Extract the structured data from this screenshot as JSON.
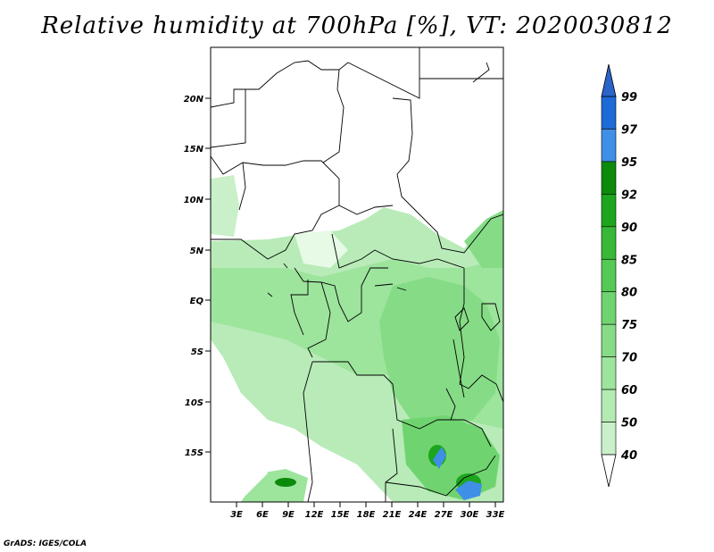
{
  "title": "Relative humidity at 700hPa [%], VT: 2020030812",
  "credit": "GrADS: IGES/COLA",
  "map": {
    "lon_range": [
      0,
      34
    ],
    "lat_range": [
      -20,
      25
    ],
    "lon_ticks": [
      "3E",
      "6E",
      "9E",
      "12E",
      "15E",
      "18E",
      "21E",
      "24E",
      "27E",
      "30E",
      "33E"
    ],
    "lat_ticks": [
      "20N",
      "15N",
      "10N",
      "5N",
      "EQ",
      "5S",
      "10S",
      "15S"
    ]
  },
  "colorbar": {
    "levels": [
      "40",
      "50",
      "60",
      "70",
      "75",
      "80",
      "85",
      "90",
      "92",
      "95",
      "97",
      "99"
    ],
    "colors": [
      "#e6fae6",
      "#c9f0c9",
      "#b3ebb3",
      "#9de49d",
      "#86dc86",
      "#6fd46f",
      "#55c955",
      "#38b838",
      "#1ea51e",
      "#0c8a0c",
      "#3f8fe6",
      "#1c6bd6",
      "#2b64c8"
    ]
  }
}
